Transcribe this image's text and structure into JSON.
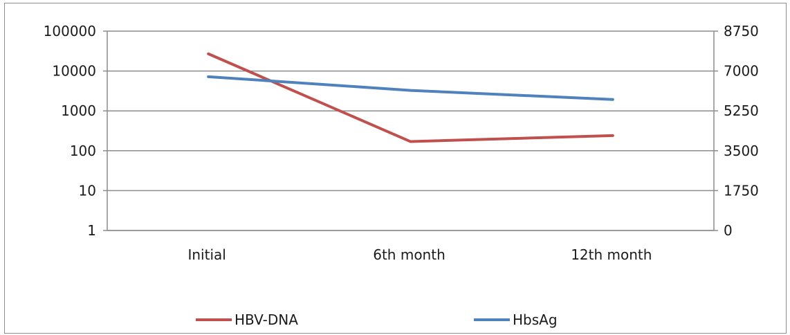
{
  "chart_data": {
    "type": "line",
    "title": "",
    "xlabel": "",
    "ylabel": "",
    "categories": [
      "Initial",
      "6th month",
      "12th month"
    ],
    "y_left": {
      "scale": "log",
      "range": [
        1,
        100000
      ],
      "tick_labels": [
        "1",
        "10",
        "100",
        "1000",
        "10000",
        "100000"
      ]
    },
    "y_right": {
      "scale": "linear",
      "range": [
        0,
        8750
      ],
      "tick_labels": [
        "0",
        "1750",
        "3500",
        "5250",
        "7000",
        "8750"
      ]
    },
    "grid": true,
    "legend_position": "bottom",
    "series": [
      {
        "name": "HBV-DNA",
        "axis": "left",
        "color": "#c0504d",
        "values": [
          27000,
          170,
          240
        ]
      },
      {
        "name": "HbsAg",
        "axis": "right",
        "color": "#4f81bd",
        "values": [
          6750,
          6150,
          5750
        ]
      }
    ]
  }
}
